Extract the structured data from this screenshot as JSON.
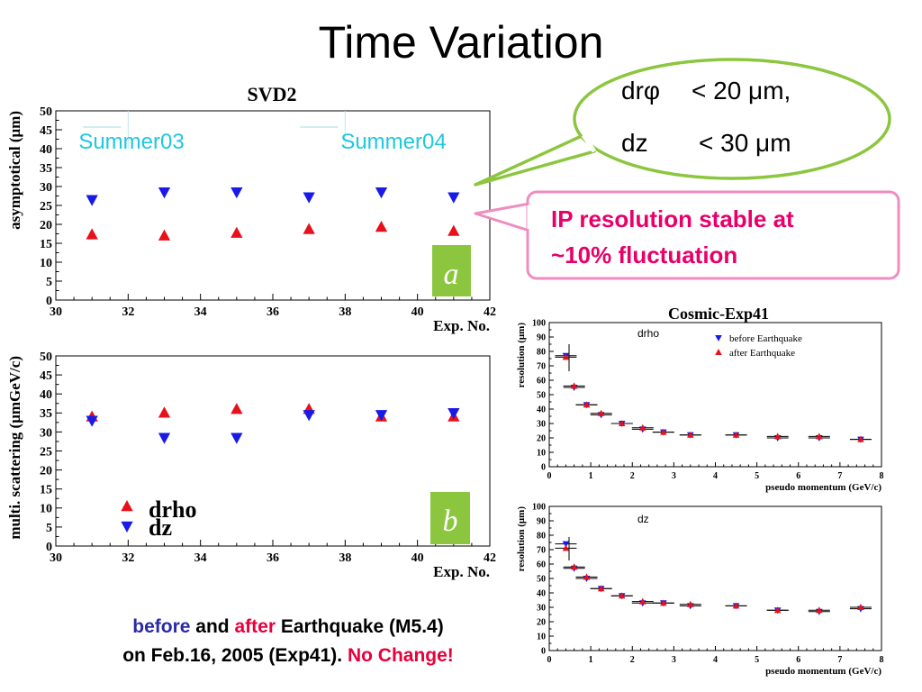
{
  "slide": {
    "title": "Time Variation",
    "footer": {
      "before": "before",
      "and": " and ",
      "after": "after",
      "rest1": " Earthquake (M5.4)",
      "line2": "on Feb.16, 2005 (Exp41).",
      "nochange": "No Change!"
    }
  },
  "callouts": {
    "bubble_line1_a": "drφ",
    "bubble_line1_b": "< 20 μm,",
    "bubble_line2_a": "dz",
    "bubble_line2_b": "< 30 μm",
    "ip_line1": "IP resolution stable at",
    "ip_line2": "~10% fluctuation"
  },
  "colors": {
    "red": "#e8101a",
    "blue": "#1a1ae8",
    "cyan": "#1ec8e0",
    "green": "#8cc63f",
    "pink": "#ef8cc0",
    "magenta": "#e8006a"
  },
  "chart_data": [
    {
      "type": "scatter",
      "title": "SVD2",
      "panel_label": "a",
      "xlabel": "Exp. No.",
      "ylabel": "asymptotical (μm)",
      "xlim": [
        30,
        42
      ],
      "ylim": [
        0,
        50
      ],
      "xticks": [
        "30",
        "32",
        "34",
        "36",
        "38",
        "40",
        "42"
      ],
      "yticks": [
        "0",
        "5",
        "10",
        "15",
        "20",
        "25",
        "30",
        "35",
        "40",
        "45",
        "50"
      ],
      "annotations": [
        "Summer03",
        "Summer04"
      ],
      "series": [
        {
          "marker": "triangle-down",
          "color": "#1a1ae8",
          "x": [
            31,
            33,
            35,
            37,
            39,
            41
          ],
          "y": [
            26.5,
            28.5,
            28.5,
            27.2,
            28.5,
            27.2
          ]
        },
        {
          "marker": "triangle-up",
          "color": "#e8101a",
          "x": [
            31,
            33,
            35,
            37,
            39,
            41
          ],
          "y": [
            17.3,
            17.0,
            17.7,
            18.7,
            19.3,
            18.2
          ]
        }
      ]
    },
    {
      "type": "scatter",
      "title": "",
      "panel_label": "b",
      "xlabel": "Exp. No.",
      "ylabel": "multi. scattering (μmGeV/c)",
      "xlim": [
        30,
        42
      ],
      "ylim": [
        0,
        50
      ],
      "xticks": [
        "30",
        "32",
        "34",
        "36",
        "38",
        "40",
        "42"
      ],
      "yticks": [
        "0",
        "5",
        "10",
        "15",
        "20",
        "25",
        "30",
        "35",
        "40",
        "45",
        "50"
      ],
      "legend": [
        "drho",
        "dz"
      ],
      "series": [
        {
          "name": "drho",
          "marker": "triangle-up",
          "color": "#e8101a",
          "x": [
            31,
            33,
            35,
            37,
            39,
            41
          ],
          "y": [
            34.0,
            35.0,
            36.0,
            36.0,
            34.0,
            34.0
          ]
        },
        {
          "name": "dz",
          "marker": "triangle-down",
          "color": "#1a1ae8",
          "x": [
            31,
            33,
            35,
            37,
            39,
            41
          ],
          "y": [
            33.0,
            28.5,
            28.5,
            34.5,
            34.5,
            35.0
          ]
        }
      ]
    },
    {
      "type": "scatter",
      "title": "Cosmic-Exp41",
      "inner_label": "drho",
      "xlabel": "pseudo momentum (GeV/c)",
      "ylabel": "resolution (μm)",
      "xlim": [
        0,
        8
      ],
      "ylim": [
        0,
        100
      ],
      "xticks": [
        "0",
        "1",
        "2",
        "3",
        "4",
        "5",
        "6",
        "7",
        "8"
      ],
      "yticks": [
        "0",
        "10",
        "20",
        "30",
        "40",
        "50",
        "60",
        "70",
        "80",
        "90",
        "100"
      ],
      "legend": [
        "before Earthquake",
        "after Earthquake"
      ],
      "series": [
        {
          "name": "before Earthquake",
          "marker": "triangle-down",
          "color": "#1a1ae8",
          "x": [
            0.4,
            0.6,
            0.9,
            1.25,
            1.75,
            2.25,
            2.75,
            3.4,
            4.5,
            5.5,
            6.5,
            7.5
          ],
          "y": [
            77,
            55,
            43,
            36,
            30,
            26,
            24,
            22,
            22,
            20,
            20,
            19
          ]
        },
        {
          "name": "after Earthquake",
          "marker": "triangle-up",
          "color": "#e8101a",
          "x": [
            0.4,
            0.6,
            0.9,
            1.25,
            1.75,
            2.25,
            2.75,
            3.4,
            4.5,
            5.5,
            6.5,
            7.5
          ],
          "y": [
            76,
            56,
            43,
            37,
            30,
            27,
            24,
            22,
            22,
            21,
            21,
            19
          ]
        }
      ]
    },
    {
      "type": "scatter",
      "title": "",
      "inner_label": "dz",
      "xlabel": "pseudo momentum (GeV/c)",
      "ylabel": "resolution (μm)",
      "xlim": [
        0,
        8
      ],
      "ylim": [
        0,
        100
      ],
      "xticks": [
        "0",
        "1",
        "2",
        "3",
        "4",
        "5",
        "6",
        "7",
        "8"
      ],
      "yticks": [
        "0",
        "10",
        "20",
        "30",
        "40",
        "50",
        "60",
        "70",
        "80",
        "90",
        "100"
      ],
      "series": [
        {
          "name": "before Earthquake",
          "marker": "triangle-down",
          "color": "#1a1ae8",
          "x": [
            0.4,
            0.6,
            0.9,
            1.25,
            1.75,
            2.25,
            2.75,
            3.4,
            4.5,
            5.5,
            6.5,
            7.5
          ],
          "y": [
            74,
            57,
            50,
            43,
            38,
            33,
            33,
            31,
            31,
            28,
            27,
            29
          ]
        },
        {
          "name": "after Earthquake",
          "marker": "triangle-up",
          "color": "#e8101a",
          "x": [
            0.4,
            0.6,
            0.9,
            1.25,
            1.75,
            2.25,
            2.75,
            3.4,
            4.5,
            5.5,
            6.5,
            7.5
          ],
          "y": [
            71,
            58,
            51,
            43,
            38,
            34,
            33,
            32,
            31,
            28,
            28,
            30
          ]
        }
      ]
    }
  ]
}
